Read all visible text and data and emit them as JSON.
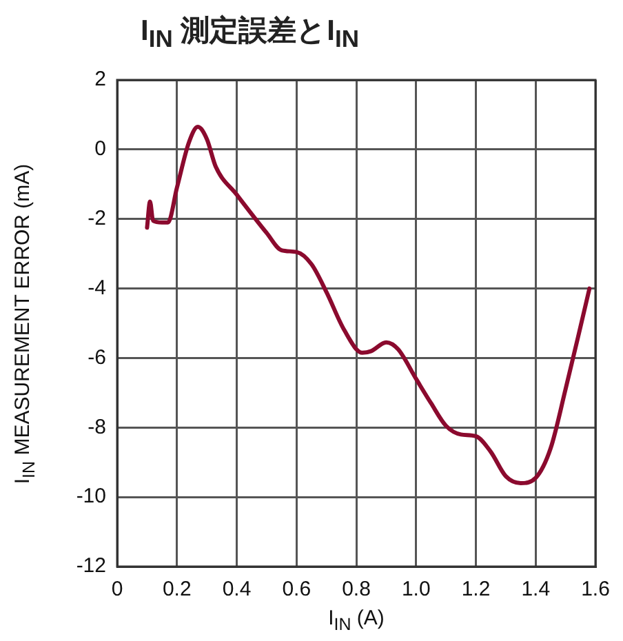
{
  "chart_data": {
    "type": "line",
    "title": "I$_{IN}$ 測定誤差とI$_{IN}$",
    "xlabel": "I$_{IN}$ (A)",
    "ylabel": "I$_{IN}$ MEASUREMENT ERROR (mA)",
    "xlim": [
      0,
      1.6
    ],
    "xticks": [
      0,
      0.2,
      0.4,
      0.6,
      0.8,
      {
        "value": 1,
        "label": "1.0"
      },
      1.2,
      1.4,
      1.6
    ],
    "ylim": [
      -12,
      2
    ],
    "yticks": [
      -12,
      -10,
      -8,
      -6,
      -4,
      -2,
      0,
      2
    ],
    "grid": true,
    "marker": "none",
    "line_style": "solid",
    "series": [
      {
        "color": "#8b0a2e",
        "x": [
          0.1,
          0.11,
          0.12,
          0.15,
          0.17,
          0.2,
          0.24,
          0.27,
          0.3,
          0.33,
          0.4,
          0.5,
          0.55,
          0.6,
          0.65,
          0.7,
          0.76,
          0.82,
          0.85,
          0.9,
          0.94,
          1.0,
          1.05,
          1.1,
          1.15,
          1.2,
          1.25,
          1.3,
          1.35,
          1.4,
          1.45,
          1.5,
          1.55,
          1.58
        ],
        "values": [
          -2.25,
          -1.5,
          -2.05,
          -2.1,
          -2.1,
          -1.1,
          0.2,
          0.65,
          0.3,
          -0.5,
          -1.3,
          -2.4,
          -2.9,
          -2.95,
          -3.3,
          -4.1,
          -5.2,
          -5.85,
          -5.8,
          -5.55,
          -5.75,
          -6.6,
          -7.3,
          -7.95,
          -8.2,
          -8.25,
          -8.7,
          -9.4,
          -9.6,
          -9.45,
          -8.6,
          -6.9,
          -5.1,
          -4.0
        ]
      }
    ]
  }
}
